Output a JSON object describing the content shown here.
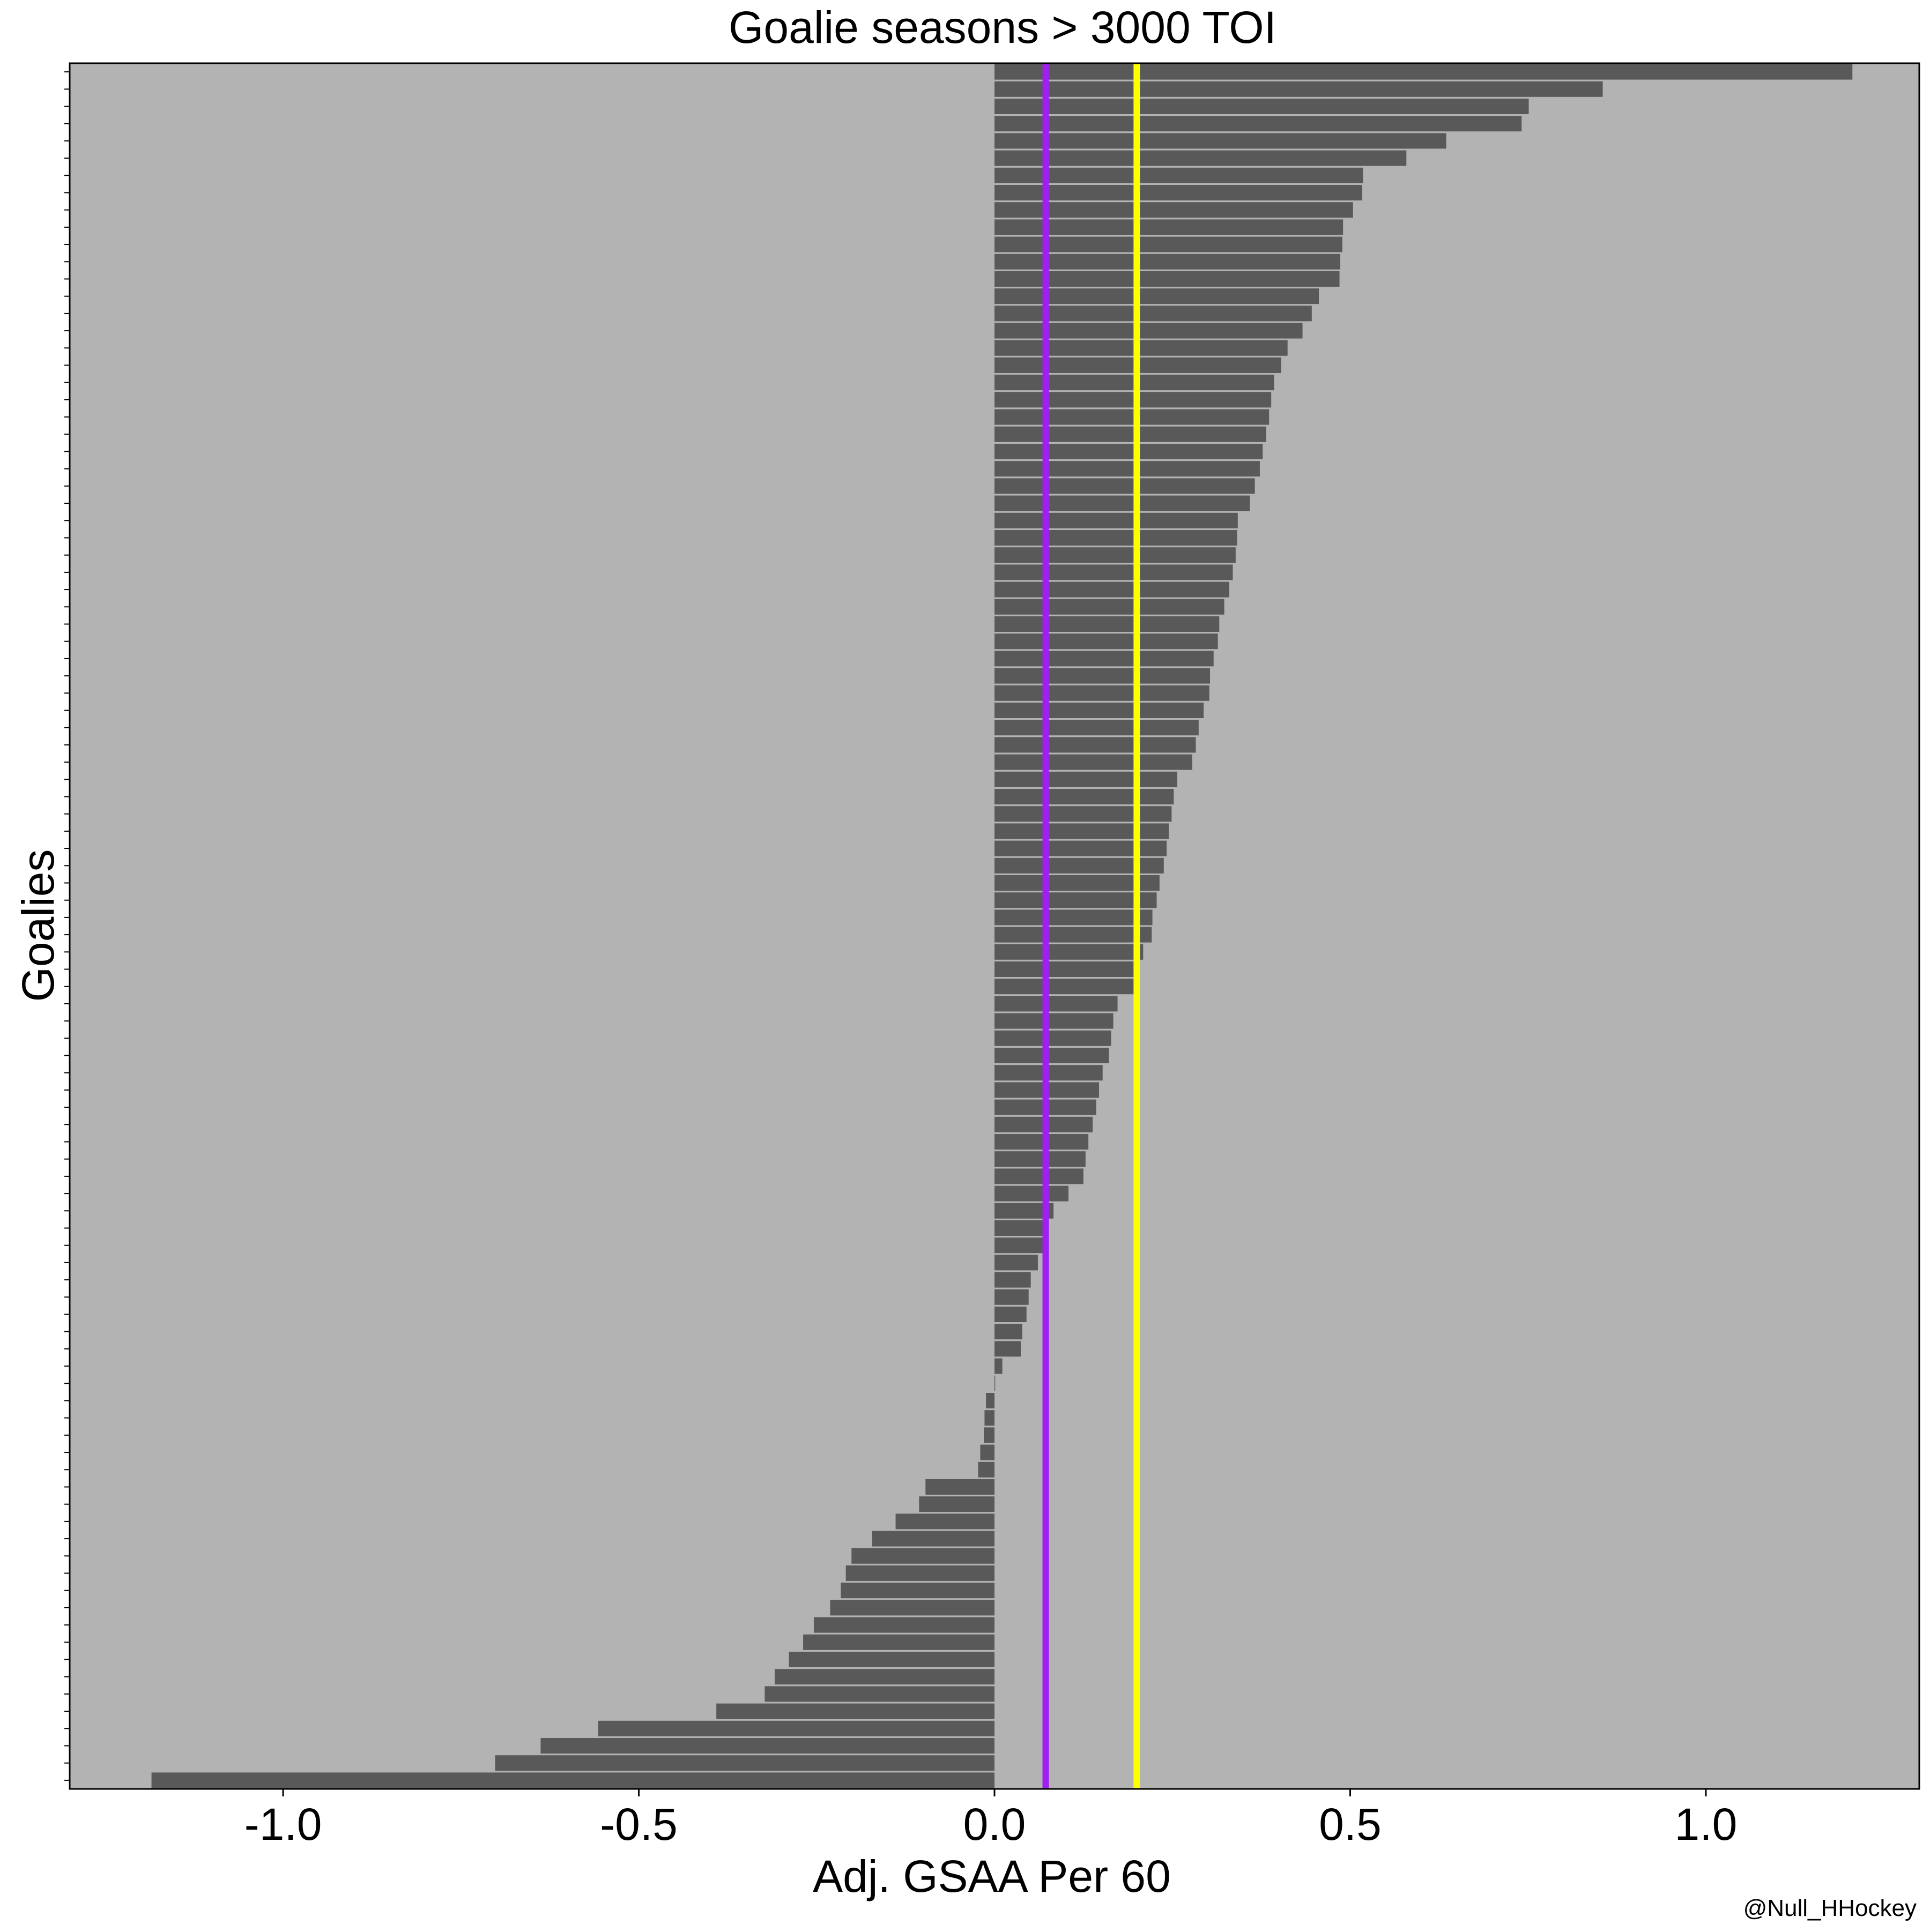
{
  "chart_data": {
    "type": "bar",
    "orientation": "horizontal",
    "title": "Goalie seasons > 3000 TOI",
    "xlabel": "Adj. GSAA Per 60",
    "ylabel": "Goalies",
    "credit": "@Null_HHockey",
    "xlim": [
      -1.3,
      1.3
    ],
    "x_ticks": [
      -1.0,
      -0.5,
      0.0,
      0.5,
      1.0
    ],
    "x_tick_labels": [
      "-1.0",
      "-0.5",
      "0.0",
      "0.5",
      "1.0"
    ],
    "grid": false,
    "legend": "none",
    "order": "values listed from bottom of plot to top",
    "values": [
      -1.185,
      -0.702,
      -0.638,
      -0.557,
      -0.391,
      -0.323,
      -0.309,
      -0.289,
      -0.269,
      -0.254,
      -0.231,
      -0.216,
      -0.209,
      -0.201,
      -0.172,
      -0.139,
      -0.106,
      -0.097,
      -0.023,
      -0.02,
      -0.015,
      -0.014,
      -0.012,
      0.001,
      0.011,
      0.037,
      0.039,
      0.045,
      0.048,
      0.051,
      0.061,
      0.068,
      0.072,
      0.083,
      0.104,
      0.125,
      0.128,
      0.132,
      0.138,
      0.143,
      0.147,
      0.152,
      0.161,
      0.164,
      0.167,
      0.173,
      0.196,
      0.199,
      0.209,
      0.221,
      0.222,
      0.228,
      0.232,
      0.238,
      0.242,
      0.245,
      0.249,
      0.252,
      0.257,
      0.278,
      0.283,
      0.287,
      0.294,
      0.302,
      0.303,
      0.308,
      0.314,
      0.316,
      0.323,
      0.33,
      0.335,
      0.339,
      0.341,
      0.342,
      0.359,
      0.366,
      0.373,
      0.377,
      0.382,
      0.386,
      0.389,
      0.393,
      0.403,
      0.412,
      0.433,
      0.446,
      0.456,
      0.485,
      0.486,
      0.489,
      0.49,
      0.504,
      0.517,
      0.518,
      0.579,
      0.635,
      0.741,
      0.751,
      0.855,
      1.206
    ],
    "reference_lines": [
      {
        "x": 0.072,
        "color": "#a020f0"
      },
      {
        "x": 0.2,
        "color": "#ffff00"
      }
    ],
    "colors": {
      "bar": "#595959",
      "panel_background": "#b3b3b3",
      "page_background": "#ffffff",
      "axis": "#000000"
    }
  }
}
